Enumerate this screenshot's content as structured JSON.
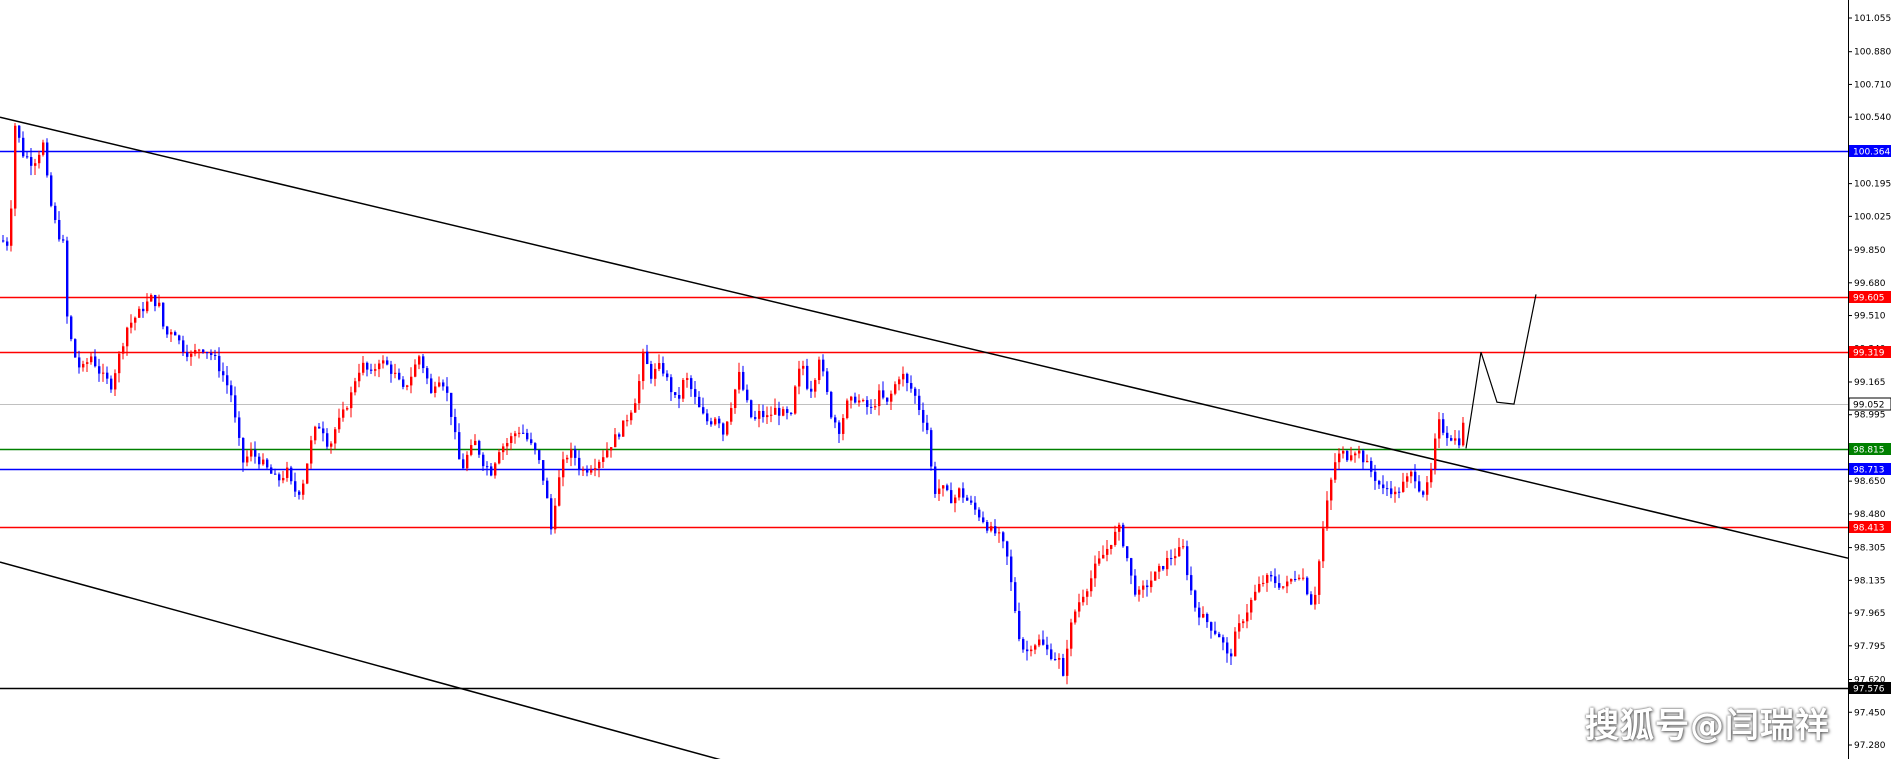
{
  "chart_data": {
    "type": "candlestick",
    "y_axis": {
      "range": [
        97.15,
        101.13
      ],
      "ticks": [
        "101.055",
        "100.880",
        "100.710",
        "100.540",
        "100.364",
        "100.195",
        "100.025",
        "99.850",
        "99.680",
        "99.510",
        "99.340",
        "99.165",
        "98.995",
        "98.825",
        "98.650",
        "98.480",
        "98.305",
        "98.135",
        "97.965",
        "97.795",
        "97.620",
        "97.450",
        "97.280"
      ]
    },
    "horizontal_levels": [
      {
        "value": 100.364,
        "label": "100.364",
        "color": "#0000ff"
      },
      {
        "value": 99.605,
        "label": "99.605",
        "color": "#ff0000"
      },
      {
        "value": 99.319,
        "label": "99.319",
        "color": "#ff0000"
      },
      {
        "value": 99.052,
        "label": "99.052",
        "color": "#c0c0c0"
      },
      {
        "value": 98.815,
        "label": "98.815",
        "color": "#008000"
      },
      {
        "value": 98.713,
        "label": "98.713",
        "color": "#0000ff"
      },
      {
        "value": 98.413,
        "label": "98.413",
        "color": "#ff0000"
      },
      {
        "value": 97.576,
        "label": "97.576",
        "color": "#000000"
      }
    ],
    "trend_lines": [
      {
        "name": "upper-channel",
        "from": [
          0,
          100.54
        ],
        "to": [
          1848,
          98.25
        ],
        "color": "#000000"
      },
      {
        "name": "lower-channel",
        "from": [
          0,
          98.23
        ],
        "to": [
          758,
          97.15
        ],
        "color": "#000000"
      }
    ],
    "forecast_path": [
      [
        1466,
        98.82
      ],
      [
        1481,
        99.32
      ],
      [
        1497,
        99.06
      ],
      [
        1514,
        99.05
      ],
      [
        1536,
        99.62
      ]
    ],
    "price_path": [
      [
        0,
        99.9
      ],
      [
        8,
        99.88
      ],
      [
        14,
        100.5
      ],
      [
        22,
        100.35
      ],
      [
        32,
        100.3
      ],
      [
        42,
        100.4
      ],
      [
        48,
        100.12
      ],
      [
        56,
        99.95
      ],
      [
        62,
        99.88
      ],
      [
        66,
        99.5
      ],
      [
        72,
        99.32
      ],
      [
        80,
        99.22
      ],
      [
        90,
        99.3
      ],
      [
        100,
        99.2
      ],
      [
        110,
        99.15
      ],
      [
        118,
        99.3
      ],
      [
        126,
        99.45
      ],
      [
        134,
        99.5
      ],
      [
        142,
        99.55
      ],
      [
        150,
        99.6
      ],
      [
        158,
        99.56
      ],
      [
        164,
        99.4
      ],
      [
        172,
        99.45
      ],
      [
        180,
        99.35
      ],
      [
        190,
        99.3
      ],
      [
        200,
        99.35
      ],
      [
        212,
        99.3
      ],
      [
        222,
        99.2
      ],
      [
        230,
        99.1
      ],
      [
        236,
        98.9
      ],
      [
        242,
        98.75
      ],
      [
        250,
        98.8
      ],
      [
        260,
        98.75
      ],
      [
        268,
        98.7
      ],
      [
        276,
        98.65
      ],
      [
        286,
        98.7
      ],
      [
        292,
        98.6
      ],
      [
        300,
        98.6
      ],
      [
        306,
        98.75
      ],
      [
        312,
        98.9
      ],
      [
        320,
        98.95
      ],
      [
        328,
        98.82
      ],
      [
        334,
        98.92
      ],
      [
        342,
        99
      ],
      [
        350,
        99.1
      ],
      [
        356,
        99.22
      ],
      [
        362,
        99.25
      ],
      [
        370,
        99.2
      ],
      [
        378,
        99.28
      ],
      [
        386,
        99.25
      ],
      [
        394,
        99.2
      ],
      [
        402,
        99.12
      ],
      [
        410,
        99.2
      ],
      [
        418,
        99.3
      ],
      [
        424,
        99.22
      ],
      [
        430,
        99.1
      ],
      [
        436,
        99.2
      ],
      [
        444,
        99.15
      ],
      [
        450,
        99
      ],
      [
        456,
        98.82
      ],
      [
        460,
        98.7
      ],
      [
        466,
        98.78
      ],
      [
        474,
        98.85
      ],
      [
        482,
        98.75
      ],
      [
        490,
        98.7
      ],
      [
        498,
        98.82
      ],
      [
        506,
        98.85
      ],
      [
        514,
        98.9
      ],
      [
        520,
        98.92
      ],
      [
        528,
        98.85
      ],
      [
        534,
        98.8
      ],
      [
        540,
        98.72
      ],
      [
        546,
        98.55
      ],
      [
        550,
        98.4
      ],
      [
        556,
        98.62
      ],
      [
        564,
        98.78
      ],
      [
        572,
        98.8
      ],
      [
        580,
        98.7
      ],
      [
        588,
        98.72
      ],
      [
        596,
        98.75
      ],
      [
        604,
        98.8
      ],
      [
        612,
        98.86
      ],
      [
        620,
        98.92
      ],
      [
        628,
        99
      ],
      [
        636,
        99.1
      ],
      [
        642,
        99.3
      ],
      [
        650,
        99.2
      ],
      [
        660,
        99.25
      ],
      [
        668,
        99.15
      ],
      [
        676,
        99.05
      ],
      [
        684,
        99.2
      ],
      [
        692,
        99.1
      ],
      [
        700,
        99
      ],
      [
        708,
        98.95
      ],
      [
        716,
        99
      ],
      [
        722,
        98.9
      ],
      [
        730,
        99.05
      ],
      [
        738,
        99.2
      ],
      [
        746,
        99.05
      ],
      [
        752,
        98.95
      ],
      [
        758,
        99
      ],
      [
        766,
        98.98
      ],
      [
        774,
        99.02
      ],
      [
        782,
        99
      ],
      [
        790,
        98.98
      ],
      [
        796,
        99.2
      ],
      [
        802,
        99.25
      ],
      [
        808,
        99.1
      ],
      [
        814,
        99.2
      ],
      [
        818,
        99.3
      ],
      [
        824,
        99.15
      ],
      [
        830,
        99
      ],
      [
        838,
        98.92
      ],
      [
        846,
        99.05
      ],
      [
        854,
        99.08
      ],
      [
        862,
        99.05
      ],
      [
        870,
        99.02
      ],
      [
        878,
        99.1
      ],
      [
        886,
        99.05
      ],
      [
        894,
        99.15
      ],
      [
        900,
        99.22
      ],
      [
        906,
        99.15
      ],
      [
        912,
        99.12
      ],
      [
        920,
        99
      ],
      [
        926,
        98.92
      ],
      [
        930,
        98.72
      ],
      [
        934,
        98.6
      ],
      [
        940,
        98.62
      ],
      [
        946,
        98.58
      ],
      [
        952,
        98.55
      ],
      [
        958,
        98.6
      ],
      [
        966,
        98.55
      ],
      [
        974,
        98.5
      ],
      [
        982,
        98.45
      ],
      [
        988,
        98.4
      ],
      [
        994,
        98.38
      ],
      [
        1000,
        98.35
      ],
      [
        1006,
        98.25
      ],
      [
        1012,
        98.05
      ],
      [
        1018,
        97.85
      ],
      [
        1024,
        97.75
      ],
      [
        1030,
        97.8
      ],
      [
        1038,
        97.82
      ],
      [
        1044,
        97.78
      ],
      [
        1050,
        97.75
      ],
      [
        1058,
        97.72
      ],
      [
        1062,
        97.62
      ],
      [
        1066,
        97.8
      ],
      [
        1072,
        97.95
      ],
      [
        1080,
        98.05
      ],
      [
        1088,
        98.12
      ],
      [
        1094,
        98.2
      ],
      [
        1100,
        98.25
      ],
      [
        1106,
        98.3
      ],
      [
        1112,
        98.36
      ],
      [
        1118,
        98.4
      ],
      [
        1124,
        98.3
      ],
      [
        1130,
        98.15
      ],
      [
        1136,
        98.05
      ],
      [
        1144,
        98.1
      ],
      [
        1152,
        98.15
      ],
      [
        1160,
        98.2
      ],
      [
        1168,
        98.25
      ],
      [
        1176,
        98.28
      ],
      [
        1182,
        98.3
      ],
      [
        1188,
        98.12
      ],
      [
        1194,
        98.0
      ],
      [
        1200,
        97.95
      ],
      [
        1206,
        97.92
      ],
      [
        1212,
        97.88
      ],
      [
        1218,
        97.85
      ],
      [
        1224,
        97.78
      ],
      [
        1228,
        97.7
      ],
      [
        1232,
        97.82
      ],
      [
        1240,
        97.92
      ],
      [
        1246,
        97.98
      ],
      [
        1252,
        98.05
      ],
      [
        1260,
        98.12
      ],
      [
        1268,
        98.15
      ],
      [
        1276,
        98.12
      ],
      [
        1284,
        98.1
      ],
      [
        1292,
        98.15
      ],
      [
        1300,
        98.18
      ],
      [
        1308,
        98.05
      ],
      [
        1312,
        98
      ],
      [
        1316,
        98.15
      ],
      [
        1322,
        98.4
      ],
      [
        1328,
        98.6
      ],
      [
        1334,
        98.75
      ],
      [
        1340,
        98.8
      ],
      [
        1346,
        98.78
      ],
      [
        1352,
        98.82
      ],
      [
        1358,
        98.8
      ],
      [
        1364,
        98.75
      ],
      [
        1370,
        98.7
      ],
      [
        1376,
        98.65
      ],
      [
        1382,
        98.6
      ],
      [
        1388,
        98.62
      ],
      [
        1394,
        98.58
      ],
      [
        1400,
        98.62
      ],
      [
        1406,
        98.66
      ],
      [
        1412,
        98.7
      ],
      [
        1418,
        98.62
      ],
      [
        1424,
        98.58
      ],
      [
        1430,
        98.7
      ],
      [
        1434,
        98.85
      ],
      [
        1438,
        98.95
      ],
      [
        1444,
        98.9
      ],
      [
        1450,
        98.88
      ],
      [
        1456,
        98.86
      ],
      [
        1460,
        98.86
      ],
      [
        1464,
        99.02
      ],
      [
        1466,
        98.82
      ]
    ]
  },
  "watermark": "搜狐号@闫瑞祥"
}
